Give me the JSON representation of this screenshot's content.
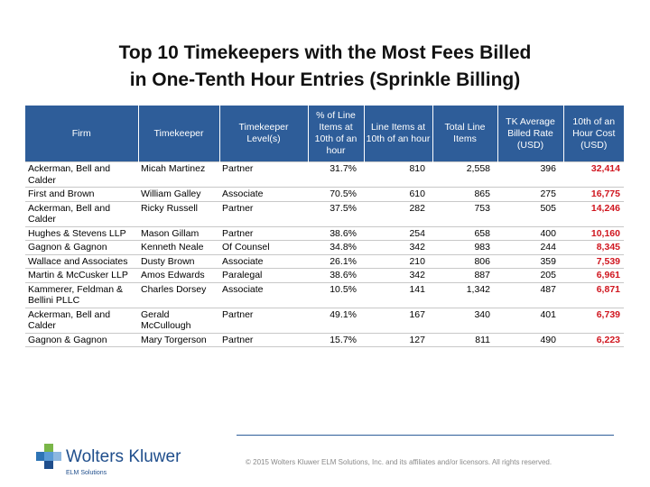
{
  "title": {
    "line1": "Top 10 Timekeepers with the Most Fees Billed",
    "line2": "in One-Tenth Hour Entries (Sprinkle Billing)"
  },
  "table": {
    "headers": [
      "Firm",
      "Timekeeper",
      "Timekeeper Level(s)",
      "% of Line Items at 10th of an hour",
      "Line Items at 10th of an hour",
      "Total Line Items",
      "TK Average Billed Rate (USD)",
      "10th of an Hour Cost (USD)"
    ],
    "rows": [
      [
        "Ackerman, Bell and Calder",
        "Micah Martinez",
        "Partner",
        "31.7%",
        "810",
        "2,558",
        "396",
        "32,414"
      ],
      [
        "First and Brown",
        "William Galley",
        "Associate",
        "70.5%",
        "610",
        "865",
        "275",
        "16,775"
      ],
      [
        "Ackerman, Bell and Calder",
        "Ricky Russell",
        "Partner",
        "37.5%",
        "282",
        "753",
        "505",
        "14,246"
      ],
      [
        "Hughes & Stevens LLP",
        "Mason Gillam",
        "Partner",
        "38.6%",
        "254",
        "658",
        "400",
        "10,160"
      ],
      [
        "Gagnon & Gagnon",
        "Kenneth Neale",
        "Of Counsel",
        "34.8%",
        "342",
        "983",
        "244",
        "8,345"
      ],
      [
        "Wallace and Associates",
        "Dusty Brown",
        "Associate",
        "26.1%",
        "210",
        "806",
        "359",
        "7,539"
      ],
      [
        "Martin & McCusker LLP",
        "Amos Edwards",
        "Paralegal",
        "38.6%",
        "342",
        "887",
        "205",
        "6,961"
      ],
      [
        "Kammerer, Feldman & Bellini PLLC",
        "Charles Dorsey",
        "Associate",
        "10.5%",
        "141",
        "1,342",
        "487",
        "6,871"
      ],
      [
        "Ackerman, Bell and Calder",
        "Gerald McCullough",
        "Partner",
        "49.1%",
        "167",
        "340",
        "401",
        "6,739"
      ],
      [
        "Gagnon & Gagnon",
        "Mary Torgerson",
        "Partner",
        "15.7%",
        "127",
        "811",
        "490",
        "6,223"
      ]
    ]
  },
  "footer": {
    "copyright": "© 2015 Wolters Kluwer ELM Solutions, Inc. and its affiliates and/or licensors. All rights reserved."
  },
  "logo": {
    "name": "Wolters Kluwer",
    "sub": "ELM Solutions",
    "colors": [
      "#7ab648",
      "#2e74b5",
      "#1f4e8c",
      "#8db7e0"
    ]
  },
  "colors": {
    "header_bg": "#2e5d99",
    "cost_text": "#d0161f"
  }
}
